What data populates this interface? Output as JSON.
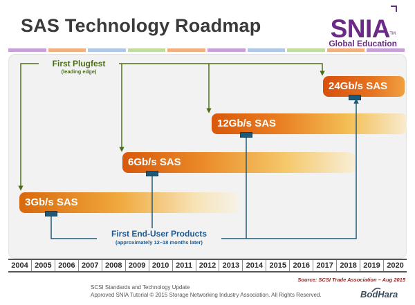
{
  "title": "SAS Technology Roadmap",
  "logo": {
    "word": "SNIA",
    "tm": "TM",
    "sub": "Global Education"
  },
  "stripe_colors": [
    "#c8a0d8",
    "#f0b080",
    "#b0c8e8",
    "#c0dca0",
    "#f0b080",
    "#c8a0d8",
    "#b0c8e8",
    "#c0dca0",
    "#f0b080",
    "#c8a0d8"
  ],
  "plugfest": {
    "label": "First Plugfest",
    "sub": "(leading edge)"
  },
  "end_user": {
    "label": "First End-User Products",
    "sub": "(approximately 12–18 months later)"
  },
  "bars": [
    {
      "label": "3Gb/s SAS"
    },
    {
      "label": "6Gb/s SAS"
    },
    {
      "label": "12Gb/s SAS"
    },
    {
      "label": "24Gb/s SAS"
    }
  ],
  "years": [
    "2004",
    "2005",
    "2006",
    "2007",
    "2008",
    "2009",
    "2010",
    "2011",
    "2012",
    "2013",
    "2014",
    "2015",
    "2016",
    "2017",
    "2018",
    "2019",
    "2020"
  ],
  "source": "Source:  SCSI Trade Association – Aug 2015",
  "footer": {
    "line1": "SCSI Standards and Technology Update",
    "line2": "Approved SNIA Tutorial © 2015 Storage Networking Industry Association. All Rights Reserved."
  },
  "watermark": "BodHara",
  "colors": {
    "plugfest_line": "#4a6e18",
    "enduser_line": "#1e5a78",
    "logo": "#6a2a86"
  }
}
